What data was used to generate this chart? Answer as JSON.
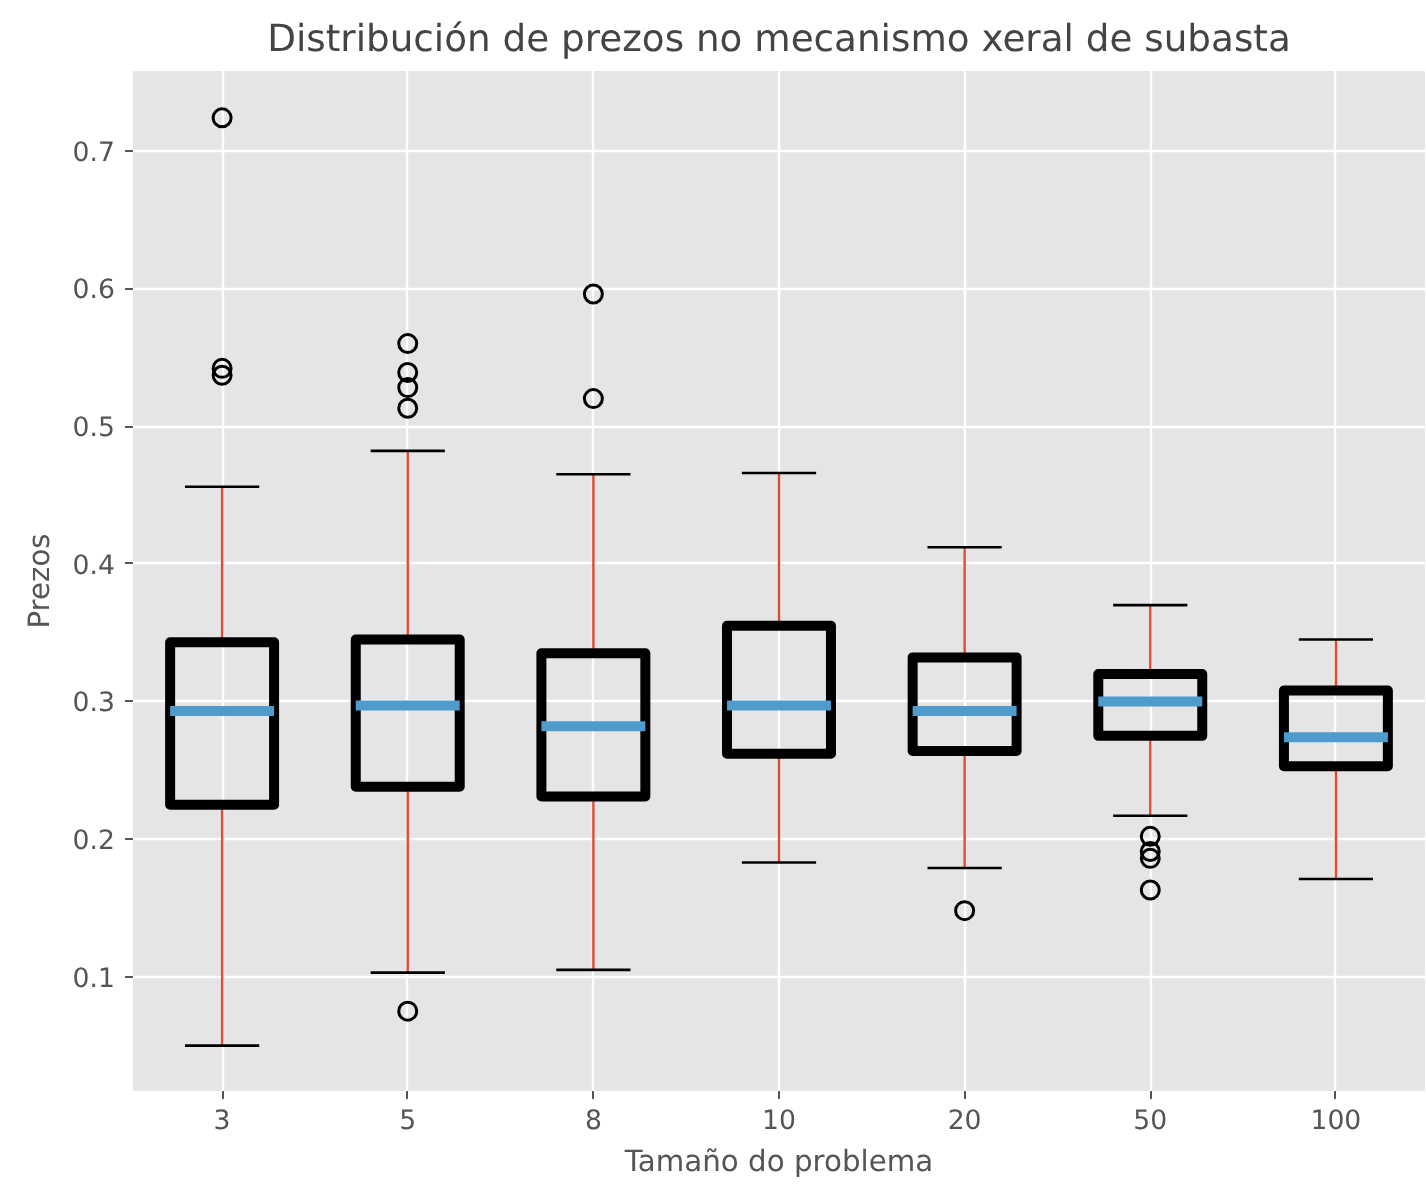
{
  "chart_data": {
    "type": "box",
    "title": "Distribución de prezos no mecanismo xeral de subasta",
    "xlabel": "Tamaño do problema",
    "ylabel": "Prezos",
    "categories": [
      "3",
      "5",
      "8",
      "10",
      "20",
      "50",
      "100"
    ],
    "series": [
      {
        "color": "#000000",
        "boxes": [
          {
            "low": 0.05,
            "q1": 0.225,
            "median": 0.293,
            "q3": 0.343,
            "high": 0.456,
            "outliers": [
              0.537,
              0.542,
              0.724
            ]
          },
          {
            "low": 0.103,
            "q1": 0.238,
            "median": 0.297,
            "q3": 0.345,
            "high": 0.482,
            "outliers": [
              0.075,
              0.513,
              0.528,
              0.539,
              0.56
            ]
          },
          {
            "low": 0.105,
            "q1": 0.231,
            "median": 0.282,
            "q3": 0.335,
            "high": 0.465,
            "outliers": [
              0.52,
              0.596
            ]
          },
          {
            "low": 0.183,
            "q1": 0.262,
            "median": 0.297,
            "q3": 0.355,
            "high": 0.466
          },
          {
            "low": 0.179,
            "q1": 0.264,
            "median": 0.293,
            "q3": 0.332,
            "high": 0.412,
            "outliers": [
              0.148
            ]
          },
          {
            "low": 0.217,
            "q1": 0.275,
            "median": 0.3,
            "q3": 0.32,
            "high": 0.37,
            "outliers": [
              0.163,
              0.186,
              0.191,
              0.202
            ]
          },
          {
            "low": 0.171,
            "q1": 0.253,
            "median": 0.274,
            "q3": 0.308,
            "high": 0.345
          }
        ]
      }
    ],
    "ylim": [
      0.017,
      0.758
    ],
    "yticks": [
      0.1,
      0.2,
      0.3,
      0.4,
      0.5,
      0.6,
      0.7
    ],
    "grid": true
  }
}
